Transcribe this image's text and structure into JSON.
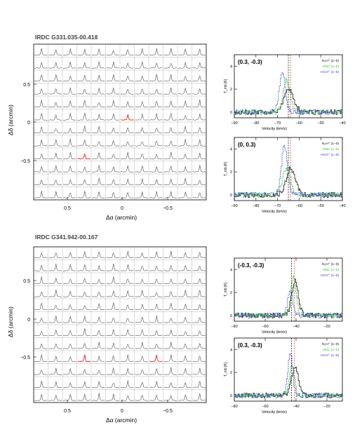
{
  "panels": [
    {
      "title": "IRDC G331.035-00.418",
      "grid": {
        "type": "line",
        "xlabel": "Δα (arcmin)",
        "ylabel": "Δδ (arcmin)",
        "xticks": [
          "0.5",
          "0",
          "−0.5"
        ],
        "yticks": [
          "0.5",
          "0",
          "−0.5"
        ],
        "rows": 12,
        "cols": 12,
        "highlight": [
          [
            5,
            6
          ],
          [
            8,
            3
          ]
        ]
      },
      "spectra": [
        {
          "type": "line",
          "position": "(0.3, -0.3)",
          "xlim": [
            -90,
            -40
          ],
          "ylim": [
            -0.5,
            5
          ],
          "xticks": [
            "−90",
            "−80",
            "−70",
            "−60",
            "−50",
            "−40"
          ],
          "yticks": [
            "0",
            "2",
            "4"
          ],
          "xlabel": "Velocity (km/s)",
          "ylabel": "T_mb [K]",
          "vlines": [
            -65,
            -64
          ],
          "series": [
            {
              "name": "N₂H⁺ (1−0)",
              "color": "#000000",
              "center": -65,
              "width": 3.2,
              "amp": 2.0
            },
            {
              "name": "HNC (1−0)",
              "color": "#22cc22",
              "center": -66,
              "width": 2.2,
              "amp": 2.9
            },
            {
              "name": "HCO⁺ (1−0)",
              "color": "#3333dd",
              "center": -68,
              "width": 1.9,
              "amp": 3.6
            }
          ]
        },
        {
          "type": "line",
          "position": "(0, 0.3)",
          "xlim": [
            -90,
            -40
          ],
          "ylim": [
            -0.5,
            5
          ],
          "xticks": [
            "−90",
            "−80",
            "−70",
            "−60",
            "−50",
            "−40"
          ],
          "yticks": [
            "0",
            "2",
            "4"
          ],
          "xlabel": "Velocity (km/s)",
          "ylabel": "T_mb [K]",
          "vlines": [
            -65,
            -64
          ],
          "series": [
            {
              "name": "N₂H⁺ (1−0)",
              "color": "#000000",
              "center": -64,
              "width": 3.0,
              "amp": 2.3
            },
            {
              "name": "HNC (1−0)",
              "color": "#22cc22",
              "center": -66,
              "width": 2.6,
              "amp": 2.3
            },
            {
              "name": "HCO⁺ (1−0)",
              "color": "#3333dd",
              "center": -67,
              "width": 2.0,
              "amp": 4.2
            }
          ]
        }
      ]
    },
    {
      "title": "IRDC G341.942-00.167",
      "grid": {
        "type": "line",
        "xlabel": "Δα (arcmin)",
        "ylabel": "Δδ (arcmin)",
        "xticks": [
          "0.5",
          "0",
          "−0.5"
        ],
        "yticks": [
          "0.5",
          "0",
          "−0.5"
        ],
        "rows": 12,
        "cols": 12,
        "highlight": [
          [
            8,
            3
          ],
          [
            8,
            8
          ]
        ]
      },
      "spectra": [
        {
          "type": "line",
          "position": "(-0.3, -0.3)",
          "xlim": [
            -80,
            -10
          ],
          "ylim": [
            -0.5,
            5
          ],
          "xticks": [
            "−80",
            "−60",
            "−40",
            "−20"
          ],
          "yticks": [
            "0",
            "2",
            "4"
          ],
          "xlabel": "Velocity (km/s)",
          "ylabel": "T_mb [K]",
          "vlines": [
            -43,
            -41
          ],
          "series": [
            {
              "name": "N₂H⁺ (1−0)",
              "color": "#000000",
              "center": -41,
              "width": 3.0,
              "amp": 3.0
            },
            {
              "name": "HNC (1−0)",
              "color": "#22cc22",
              "center": -42,
              "width": 2.4,
              "amp": 3.3
            },
            {
              "name": "HCO⁺ (1−0)",
              "color": "#3333dd",
              "center": -44,
              "width": 2.2,
              "amp": 2.2
            }
          ]
        },
        {
          "type": "line",
          "position": "(0.3, -0.3)",
          "xlim": [
            -80,
            -10
          ],
          "ylim": [
            -0.5,
            5
          ],
          "xticks": [
            "−80",
            "−60",
            "−40",
            "−20"
          ],
          "yticks": [
            "0",
            "2",
            "4"
          ],
          "xlabel": "Velocity (km/s)",
          "ylabel": "T_mb [K]",
          "vlines": [
            -43,
            -41
          ],
          "series": [
            {
              "name": "N₂H⁺ (1−0)",
              "color": "#000000",
              "center": -41,
              "width": 3.2,
              "amp": 2.4
            },
            {
              "name": "HNC (1−0)",
              "color": "#22cc22",
              "center": -43,
              "width": 2.4,
              "amp": 2.6
            },
            {
              "name": "HCO⁺ (1−0)",
              "color": "#3333dd",
              "center": -44,
              "width": 2.2,
              "amp": 3.6
            }
          ]
        }
      ]
    }
  ]
}
